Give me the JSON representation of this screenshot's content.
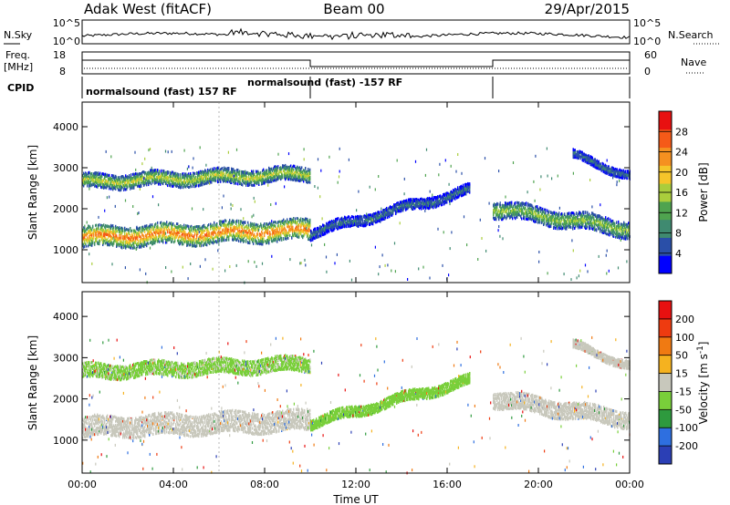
{
  "header": {
    "radar": "Adak West (fitACF)",
    "beam": "Beam 00",
    "date": "29/Apr/2015"
  },
  "side_labels": {
    "nsky": "N.Sky",
    "nsearch": "N.Search",
    "freq": "Freq.",
    "freq_unit": "[MHz]",
    "nave": "Nave",
    "cpid": "CPID"
  },
  "noise_panel": {
    "left_ticks": [
      "10^5",
      "10^0"
    ],
    "right_ticks": [
      "10^5",
      "10^0"
    ]
  },
  "freq_panel": {
    "left_ticks": [
      "18",
      "8"
    ],
    "right_ticks": [
      "60",
      "0"
    ]
  },
  "cpid_panel": {
    "labels": [
      "normalsound (fast) 157 RF",
      "normalsound (fast) -157 RF"
    ]
  },
  "colors": {
    "power_scale": [
      "#0000ff",
      "#2a4fa8",
      "#3f8a70",
      "#4fa34f",
      "#aacd3c",
      "#f5c52a",
      "#f59020",
      "#f55a18",
      "#e81010"
    ],
    "velocity_scale": [
      "#2b3fb5",
      "#2e6fe0",
      "#2e9a3e",
      "#79cf3a",
      "#c8c8bc",
      "#f5b21f",
      "#f07a12",
      "#ee3b10",
      "#e81010"
    ]
  },
  "chart_data": [
    {
      "type": "heatmap",
      "title": "Power",
      "ylabel": "Slant Range [km]",
      "xlabel": "",
      "x_ticks": [
        "00:00",
        "04:00",
        "08:00",
        "12:00",
        "16:00",
        "20:00",
        "00:00"
      ],
      "x_hours": [
        0,
        4,
        8,
        12,
        16,
        20,
        24
      ],
      "xlim_hours": [
        0,
        24
      ],
      "y_ticks": [
        1000,
        2000,
        3000,
        4000
      ],
      "ylim": [
        200,
        4600
      ],
      "colorbar_label": "Power [dB]",
      "colorbar_ticks": [
        4,
        8,
        12,
        16,
        20,
        24,
        28
      ],
      "colorbar_range": [
        0,
        32
      ],
      "echo_bands": [
        {
          "range": [
            0,
            10
          ],
          "center": [
            1300,
            1480
          ],
          "width": 500,
          "level": 26
        },
        {
          "range": [
            0,
            10
          ],
          "center": [
            2650,
            2850
          ],
          "width": 350,
          "level": 18
        },
        {
          "range": [
            10,
            17
          ],
          "center": [
            1400,
            2450
          ],
          "width": 250,
          "level": 8
        },
        {
          "range": [
            18,
            24
          ],
          "center": [
            2000,
            1500
          ],
          "width": 400,
          "level": 16
        },
        {
          "range": [
            21.5,
            24
          ],
          "center": [
            3300,
            2800
          ],
          "width": 200,
          "level": 8
        }
      ]
    },
    {
      "type": "heatmap",
      "title": "Velocity",
      "ylabel": "Slant Range [km]",
      "xlabel": "Time UT",
      "x_ticks": [
        "00:00",
        "04:00",
        "08:00",
        "12:00",
        "16:00",
        "20:00",
        "00:00"
      ],
      "x_hours": [
        0,
        4,
        8,
        12,
        16,
        20,
        24
      ],
      "xlim_hours": [
        0,
        24
      ],
      "y_ticks": [
        1000,
        2000,
        3000,
        4000
      ],
      "ylim": [
        200,
        4600
      ],
      "colorbar_label": "Velocity [m s^-1]",
      "colorbar_ticks": [
        200,
        100,
        50,
        15,
        -15,
        -50,
        -100,
        -200
      ],
      "colorbar_range": [
        -250,
        250
      ],
      "echo_bands": [
        {
          "range": [
            0,
            10
          ],
          "center": [
            1300,
            1480
          ],
          "width": 500,
          "level": 0
        },
        {
          "range": [
            0,
            10
          ],
          "center": [
            2650,
            2850
          ],
          "width": 350,
          "level": -40
        },
        {
          "range": [
            10,
            17
          ],
          "center": [
            1400,
            2450
          ],
          "width": 250,
          "level": -60
        },
        {
          "range": [
            18,
            24
          ],
          "center": [
            2000,
            1500
          ],
          "width": 400,
          "level": 0
        },
        {
          "range": [
            21.5,
            24
          ],
          "center": [
            3300,
            2800
          ],
          "width": 200,
          "level": 0
        }
      ]
    }
  ]
}
